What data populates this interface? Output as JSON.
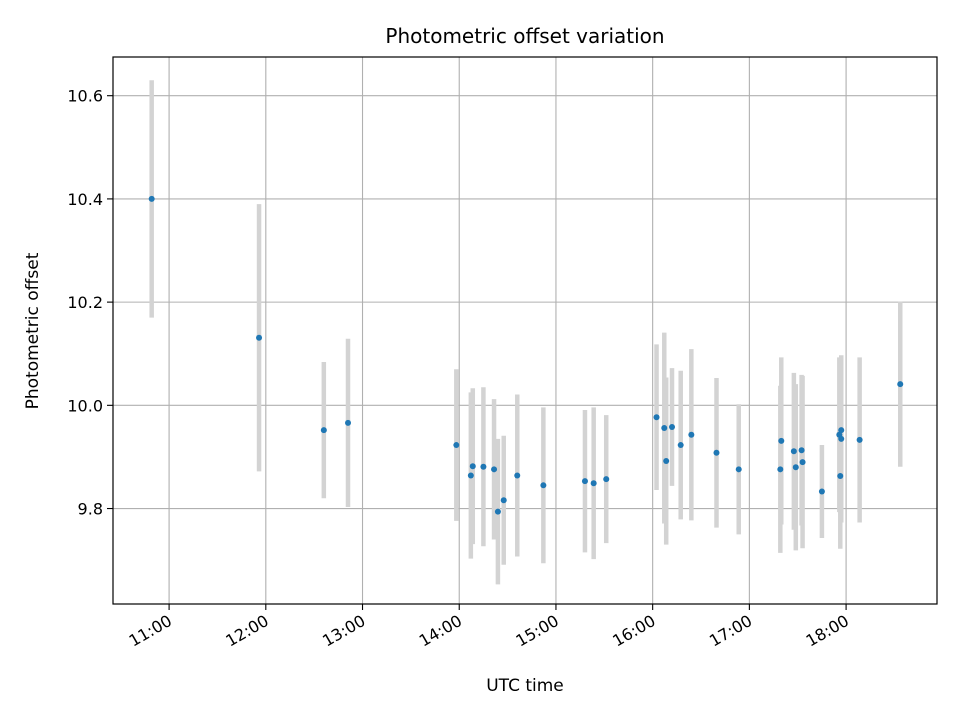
{
  "chart_data": {
    "type": "scatter",
    "title": "Photometric offset variation",
    "xlabel": "UTC time",
    "ylabel": "Photometric offset",
    "x_unit": "hours (UTC)",
    "xlim": [
      10.42,
      18.94
    ],
    "ylim": [
      9.615,
      10.675
    ],
    "x_ticks": [
      {
        "value": 11,
        "label": "11:00"
      },
      {
        "value": 12,
        "label": "12:00"
      },
      {
        "value": 13,
        "label": "13:00"
      },
      {
        "value": 14,
        "label": "14:00"
      },
      {
        "value": 15,
        "label": "15:00"
      },
      {
        "value": 16,
        "label": "16:00"
      },
      {
        "value": 17,
        "label": "17:00"
      },
      {
        "value": 18,
        "label": "18:00"
      }
    ],
    "y_ticks": [
      {
        "value": 9.8,
        "label": "9.8"
      },
      {
        "value": 10.0,
        "label": "10.0"
      },
      {
        "value": 10.2,
        "label": "10.2"
      },
      {
        "value": 10.4,
        "label": "10.4"
      },
      {
        "value": 10.6,
        "label": "10.6"
      }
    ],
    "grid": true,
    "marker_color": "#1f77b4",
    "errorbar_color": "#d3d3d3",
    "points": [
      {
        "x": 10.82,
        "y": 10.4,
        "err": 0.23
      },
      {
        "x": 11.93,
        "y": 10.131,
        "err": 0.259
      },
      {
        "x": 12.6,
        "y": 9.952,
        "err": 0.132
      },
      {
        "x": 12.85,
        "y": 9.966,
        "err": 0.163
      },
      {
        "x": 13.97,
        "y": 9.923,
        "err": 0.147
      },
      {
        "x": 14.12,
        "y": 9.864,
        "err": 0.161
      },
      {
        "x": 14.14,
        "y": 9.882,
        "err": 0.151
      },
      {
        "x": 14.25,
        "y": 9.881,
        "err": 0.154
      },
      {
        "x": 14.36,
        "y": 9.876,
        "err": 0.136
      },
      {
        "x": 14.4,
        "y": 9.794,
        "err": 0.141
      },
      {
        "x": 14.46,
        "y": 9.816,
        "err": 0.125
      },
      {
        "x": 14.6,
        "y": 9.864,
        "err": 0.157
      },
      {
        "x": 14.87,
        "y": 9.845,
        "err": 0.151
      },
      {
        "x": 15.3,
        "y": 9.853,
        "err": 0.138
      },
      {
        "x": 15.39,
        "y": 9.849,
        "err": 0.147
      },
      {
        "x": 15.52,
        "y": 9.857,
        "err": 0.124
      },
      {
        "x": 16.04,
        "y": 9.977,
        "err": 0.141
      },
      {
        "x": 16.12,
        "y": 9.956,
        "err": 0.185
      },
      {
        "x": 16.14,
        "y": 9.892,
        "err": 0.162
      },
      {
        "x": 16.2,
        "y": 9.958,
        "err": 0.114
      },
      {
        "x": 16.29,
        "y": 9.923,
        "err": 0.144
      },
      {
        "x": 16.4,
        "y": 9.943,
        "err": 0.166
      },
      {
        "x": 16.66,
        "y": 9.908,
        "err": 0.145
      },
      {
        "x": 16.89,
        "y": 9.876,
        "err": 0.126
      },
      {
        "x": 17.32,
        "y": 9.876,
        "err": 0.162
      },
      {
        "x": 17.33,
        "y": 9.931,
        "err": 0.162
      },
      {
        "x": 17.46,
        "y": 9.911,
        "err": 0.152
      },
      {
        "x": 17.48,
        "y": 9.88,
        "err": 0.161
      },
      {
        "x": 17.54,
        "y": 9.913,
        "err": 0.146
      },
      {
        "x": 17.55,
        "y": 9.89,
        "err": 0.167
      },
      {
        "x": 17.75,
        "y": 9.833,
        "err": 0.09
      },
      {
        "x": 17.93,
        "y": 9.943,
        "err": 0.15
      },
      {
        "x": 17.94,
        "y": 9.863,
        "err": 0.141
      },
      {
        "x": 17.95,
        "y": 9.952,
        "err": 0.143
      },
      {
        "x": 17.95,
        "y": 9.935,
        "err": 0.162
      },
      {
        "x": 18.14,
        "y": 9.933,
        "err": 0.16
      },
      {
        "x": 18.56,
        "y": 10.041,
        "err": 0.16
      }
    ]
  }
}
